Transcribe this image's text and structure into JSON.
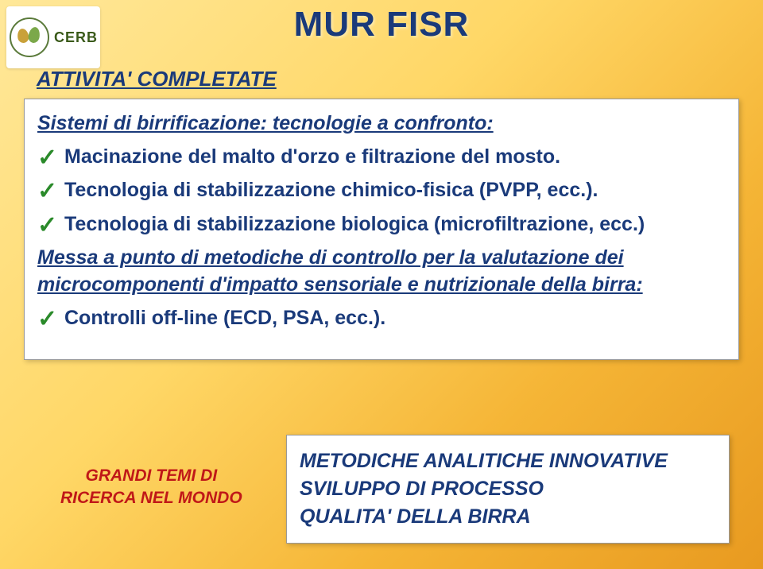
{
  "colors": {
    "headingBlue": "#1a3a7a",
    "checkGreen": "#2a8a2a",
    "accentRed": "#c01818",
    "cardBg": "#ffffff",
    "gradientStart": "#ffe89a",
    "gradientEnd": "#e89a20"
  },
  "logo": {
    "text": "CERB"
  },
  "title": "MUR  FISR",
  "subtitle": "ATTIVITA' COMPLETATE",
  "contentBox": {
    "heading1": "Sistemi di birrificazione: tecnologie a confronto:",
    "items1": [
      "Macinazione del malto d'orzo e filtrazione del mosto.",
      "Tecnologia di stabilizzazione chimico-fisica (PVPP, ecc.).",
      "Tecnologia di stabilizzazione biologica (microfiltrazione, ecc.)"
    ],
    "heading2": "Messa a punto di metodiche di controllo per la valutazione dei microcomponenti d'impatto sensoriale e nutrizionale della birra:",
    "items2": [
      "Controlli off-line (ECD, PSA, ecc.)."
    ]
  },
  "footerLeft": "GRANDI TEMI DI\nRICERCA NEL MONDO",
  "footerBox": {
    "lines": [
      "METODICHE ANALITICHE INNOVATIVE",
      "SVILUPPO DI PROCESSO",
      "QUALITA' DELLA BIRRA"
    ]
  }
}
